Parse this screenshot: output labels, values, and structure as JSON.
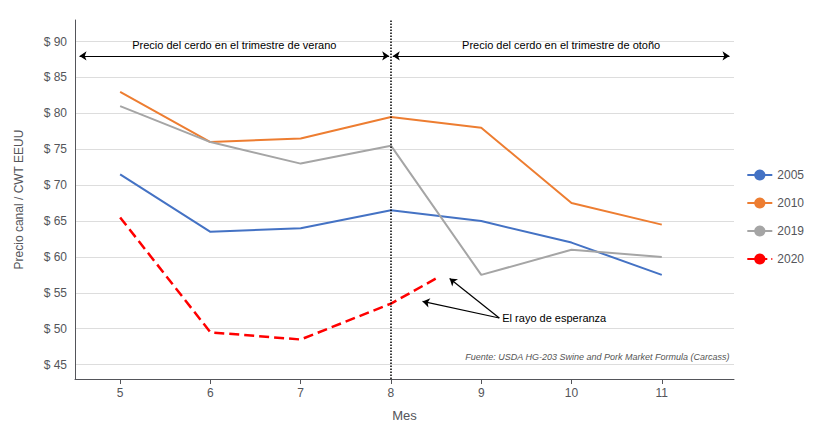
{
  "chart_data": {
    "type": "line",
    "xlabel": "Mes",
    "ylabel": "Precio canal / CWT EEUU",
    "series": [
      {
        "name": "2005",
        "color": "#4472C4",
        "line_style": "solid",
        "x": [
          5,
          6,
          7,
          8,
          9,
          10,
          11
        ],
        "values": [
          71.5,
          63.5,
          64.0,
          66.5,
          65.0,
          62.0,
          57.5
        ]
      },
      {
        "name": "2010",
        "color": "#ED7D31",
        "line_style": "solid",
        "x": [
          5,
          6,
          7,
          8,
          9,
          10,
          11
        ],
        "values": [
          83.0,
          76.0,
          76.5,
          79.5,
          78.0,
          67.5,
          64.5
        ]
      },
      {
        "name": "2019",
        "color": "#A5A5A5",
        "line_style": "solid",
        "x": [
          5,
          6,
          7,
          8,
          9,
          10,
          11
        ],
        "values": [
          81.0,
          76.0,
          73.0,
          75.5,
          57.5,
          61.0,
          60.0
        ]
      },
      {
        "name": "2020",
        "color": "#FF0000",
        "line_style": "dashed",
        "x": [
          5,
          6,
          7,
          8,
          8.5
        ],
        "values": [
          65.5,
          49.5,
          48.5,
          53.5,
          57.0
        ]
      }
    ],
    "xlim": [
      4.5,
      11.8
    ],
    "xticks": [
      5,
      6,
      7,
      8,
      9,
      10,
      11
    ],
    "ylim": [
      43,
      93
    ],
    "yticks": [
      {
        "value": 45,
        "label": "$ 45"
      },
      {
        "value": 50,
        "label": "$ 50"
      },
      {
        "value": 55,
        "label": "$ 55"
      },
      {
        "value": 60,
        "label": "$ 60"
      },
      {
        "value": 65,
        "label": "$ 65"
      },
      {
        "value": 70,
        "label": "$ 70"
      },
      {
        "value": 75,
        "label": "$ 75"
      },
      {
        "value": 80,
        "label": "$ 80"
      },
      {
        "value": 85,
        "label": "$ 85"
      },
      {
        "value": 90,
        "label": "$ 90"
      }
    ],
    "grid": true,
    "legend": "right",
    "vlines": [
      8.0
    ],
    "annotations": [
      {
        "text": "Precio del cerdo en el trimestre de verano",
        "span": [
          4.55,
          7.98
        ],
        "y": 88.0
      },
      {
        "text": "Precio del cerdo en el trimestre de otoño",
        "span": [
          8.02,
          11.75
        ],
        "y": 88.0
      },
      {
        "text": "El rayo de esperanza",
        "x": 9.2,
        "y": 51.5,
        "arrows_to": [
          [
            8.35,
            53.8
          ],
          [
            8.65,
            57.0
          ]
        ]
      },
      {
        "text": "Fuente: USDA HG-203 Swine and Pork Market Formula (Carcass)",
        "x": 11.75,
        "y": 45.5
      }
    ]
  }
}
